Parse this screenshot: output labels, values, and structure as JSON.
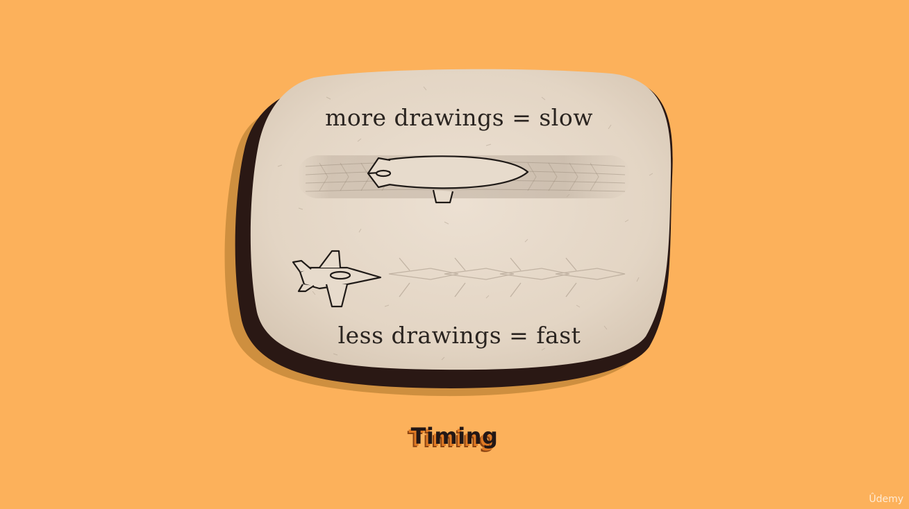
{
  "card": {
    "top_caption": "more drawings = slow",
    "bottom_caption": "less drawings = fast"
  },
  "title": "Timing",
  "watermark": "Ûdemy",
  "colors": {
    "background": "#FCB15B",
    "card": "#E6D8C8",
    "card_shadow": "#2A1814",
    "card_back_shadow": "#C58A3B",
    "ink": "#2A2420",
    "title_shadow": "#E07A24"
  },
  "icons": [
    "blimp-icon",
    "jet-plane-icon"
  ]
}
